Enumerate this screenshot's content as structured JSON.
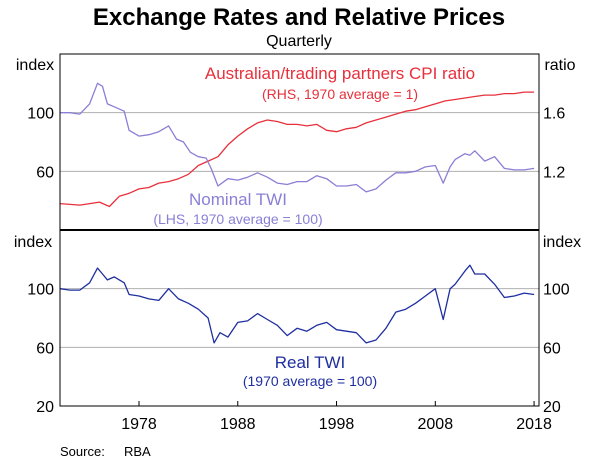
{
  "title": "Exchange Rates and Relative Prices",
  "subtitle": "Quarterly",
  "source_label": "Source:",
  "source_value": "RBA",
  "colors": {
    "cpi": "#e8303c",
    "ntwi": "#8a7fd6",
    "rtwi": "#1f2fa0",
    "grid": "#b0b0b0",
    "frame": "#000000"
  },
  "chart_data": [
    {
      "type": "line",
      "panel": "top",
      "left_axis": {
        "label": "index",
        "ticks": [
          "60",
          "100"
        ],
        "tick_values": [
          60,
          100
        ],
        "range": [
          20,
          140
        ]
      },
      "right_axis": {
        "label": "ratio",
        "ticks": [
          "1.2",
          "1.6"
        ],
        "tick_values": [
          1.2,
          1.6
        ],
        "range": [
          0.8,
          2.0
        ]
      },
      "x_range": [
        1970,
        2018.5
      ],
      "grid": true,
      "series": [
        {
          "name": "Australian/trading partners CPI ratio",
          "note": "(RHS, 1970 average = 1)",
          "axis": "right",
          "color": "#e8303c",
          "x": [
            1970,
            1972,
            1974,
            1975,
            1976,
            1977,
            1978,
            1979,
            1980,
            1981,
            1982,
            1983,
            1984,
            1985,
            1986,
            1987,
            1988,
            1989,
            1990,
            1991,
            1992,
            1993,
            1994,
            1995,
            1996,
            1997,
            1998,
            1999,
            2000,
            2001,
            2002,
            2003,
            2004,
            2005,
            2006,
            2007,
            2008,
            2009,
            2010,
            2011,
            2012,
            2013,
            2014,
            2015,
            2016,
            2017,
            2018
          ],
          "values": [
            0.98,
            0.97,
            0.99,
            0.96,
            1.03,
            1.05,
            1.08,
            1.09,
            1.12,
            1.13,
            1.15,
            1.18,
            1.24,
            1.27,
            1.3,
            1.38,
            1.44,
            1.49,
            1.53,
            1.55,
            1.54,
            1.52,
            1.52,
            1.51,
            1.52,
            1.48,
            1.47,
            1.49,
            1.5,
            1.53,
            1.55,
            1.57,
            1.59,
            1.61,
            1.62,
            1.64,
            1.66,
            1.68,
            1.69,
            1.7,
            1.71,
            1.72,
            1.72,
            1.73,
            1.73,
            1.74,
            1.74
          ]
        },
        {
          "name": "Nominal TWI",
          "note": "(LHS, 1970 average = 100)",
          "axis": "left",
          "color": "#8a7fd6",
          "x": [
            1970,
            1971,
            1972,
            1973,
            1973.8,
            1974.3,
            1974.8,
            1975.5,
            1976.5,
            1977,
            1978,
            1979,
            1980,
            1981,
            1981.8,
            1982.5,
            1983.2,
            1984,
            1984.8,
            1985.3,
            1986,
            1987,
            1988,
            1989,
            1990,
            1991,
            1992,
            1993,
            1994,
            1995,
            1996,
            1997,
            1998,
            1999,
            2000,
            2001,
            2002,
            2003,
            2004,
            2005,
            2006,
            2007,
            2008,
            2008.8,
            2009.5,
            2010,
            2011,
            2011.5,
            2012,
            2013,
            2014,
            2015,
            2016,
            2017,
            2018
          ],
          "values": [
            100,
            100,
            99,
            106,
            120,
            118,
            106,
            104,
            101,
            88,
            84,
            85,
            87,
            91,
            82,
            80,
            73,
            70,
            69,
            62,
            50,
            55,
            54,
            56,
            59,
            56,
            52,
            51,
            53,
            53,
            57,
            55,
            50,
            50,
            51,
            46,
            48,
            54,
            59,
            59,
            60,
            63,
            64,
            52,
            63,
            68,
            72,
            71,
            74,
            67,
            70,
            62,
            61,
            61,
            62
          ]
        }
      ]
    },
    {
      "type": "line",
      "panel": "bottom",
      "left_axis": {
        "label": "index",
        "ticks": [
          "20",
          "60",
          "100"
        ],
        "tick_values": [
          20,
          60,
          100
        ],
        "range": [
          20,
          140
        ]
      },
      "right_axis": {
        "label": "index",
        "ticks": [
          "20",
          "60",
          "100"
        ],
        "tick_values": [
          20,
          60,
          100
        ],
        "range": [
          20,
          140
        ]
      },
      "x_ticks": [
        "1978",
        "1988",
        "1998",
        "2008",
        "2018"
      ],
      "x_tick_values": [
        1978,
        1988,
        1998,
        2008,
        2018
      ],
      "x_range": [
        1970,
        2018.5
      ],
      "grid": true,
      "series": [
        {
          "name": "Real TWI",
          "note": "(1970 average = 100)",
          "color": "#1f2fa0",
          "x": [
            1970,
            1971,
            1972,
            1973,
            1973.8,
            1974.3,
            1974.8,
            1975.5,
            1976.5,
            1977,
            1978,
            1979,
            1980,
            1981,
            1982,
            1983,
            1984,
            1985,
            1985.6,
            1986.2,
            1987,
            1988,
            1989,
            1990,
            1991,
            1992,
            1993,
            1994,
            1995,
            1996,
            1997,
            1998,
            1999,
            2000,
            2001,
            2002,
            2003,
            2004,
            2005,
            2006,
            2007,
            2008,
            2008.8,
            2009.5,
            2010,
            2011,
            2011.5,
            2012,
            2013,
            2014,
            2015,
            2016,
            2017,
            2018
          ],
          "values": [
            100,
            99,
            99,
            104,
            114,
            110,
            106,
            108,
            104,
            96,
            95,
            93,
            92,
            100,
            93,
            90,
            86,
            80,
            63,
            70,
            67,
            77,
            78,
            83,
            79,
            75,
            68,
            73,
            71,
            75,
            77,
            72,
            71,
            70,
            63,
            65,
            73,
            84,
            86,
            90,
            95,
            100,
            79,
            100,
            103,
            112,
            116,
            110,
            110,
            103,
            94,
            95,
            97,
            96
          ]
        }
      ]
    }
  ]
}
